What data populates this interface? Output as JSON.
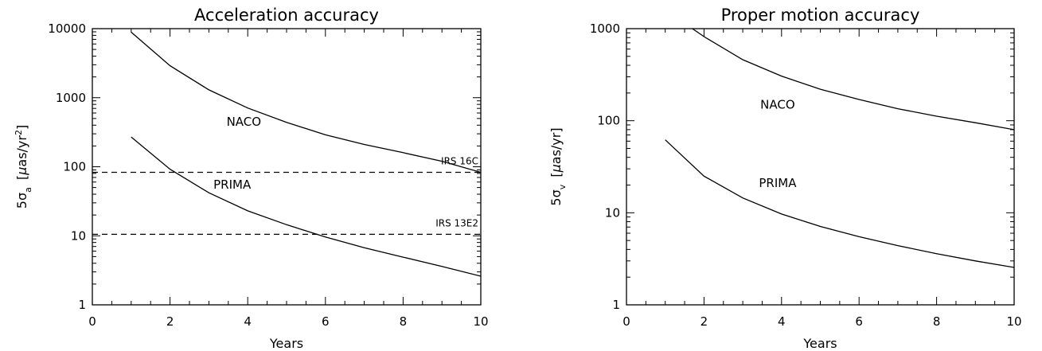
{
  "chart_data": [
    {
      "type": "line",
      "title": "Acceleration accuracy",
      "xlabel": "Years",
      "ylabel": {
        "prefix": "5σ",
        "sub": "a",
        "units_open": "[",
        "mu": "μ",
        "units_mid": "as/yr",
        "sup": "2",
        "units_close": "]"
      },
      "xlim": [
        0,
        10
      ],
      "ylim": [
        1,
        10000
      ],
      "yscale": "log",
      "xticks": [
        "0",
        "2",
        "4",
        "6",
        "8",
        "10"
      ],
      "yticks": [
        "1",
        "10",
        "100",
        "1000",
        "10000"
      ],
      "grid": false,
      "series": [
        {
          "name": "NACO",
          "x": [
            1,
            2,
            3,
            4,
            5,
            6,
            7,
            8,
            9,
            10
          ],
          "y": [
            8900,
            2900,
            1300,
            710,
            440,
            290,
            210,
            160,
            120,
            83
          ]
        },
        {
          "name": "PRIMA",
          "x": [
            1,
            2,
            3,
            4,
            5,
            6,
            7,
            8,
            9,
            10
          ],
          "y": [
            270,
            92,
            42,
            23,
            14.5,
            9.6,
            6.7,
            4.9,
            3.6,
            2.6
          ]
        }
      ],
      "reference_lines": [
        {
          "name": "IRS 16C",
          "y": 83,
          "style": "dashed"
        },
        {
          "name": "IRS 13E2",
          "y": 10.5,
          "style": "dashed"
        }
      ],
      "annotations": [
        {
          "text": "NACO",
          "x": 3.9,
          "y": 450
        },
        {
          "text": "PRIMA",
          "x": 3.6,
          "y": 55
        }
      ]
    },
    {
      "type": "line",
      "title": "Proper motion accuracy",
      "xlabel": "Years",
      "ylabel": {
        "prefix": "5σ",
        "sub": "v",
        "units_open": "[",
        "mu": "μ",
        "units_mid": "as/yr",
        "units_close": "]"
      },
      "xlim": [
        0,
        10
      ],
      "ylim": [
        1,
        1000
      ],
      "yscale": "log",
      "xticks": [
        "0",
        "2",
        "4",
        "6",
        "8",
        "10"
      ],
      "yticks": [
        "1",
        "10",
        "100",
        "1000"
      ],
      "grid": false,
      "series": [
        {
          "name": "NACO",
          "x": [
            1.7,
            2,
            3,
            4,
            5,
            6,
            7,
            8,
            9,
            10
          ],
          "y": [
            1000,
            820,
            460,
            305,
            220,
            170,
            135,
            112,
            95,
            80
          ]
        },
        {
          "name": "PRIMA",
          "x": [
            1,
            2,
            3,
            4,
            5,
            6,
            7,
            8,
            9,
            10
          ],
          "y": [
            62,
            25,
            14.5,
            9.7,
            7.1,
            5.5,
            4.4,
            3.6,
            3.0,
            2.55
          ]
        }
      ],
      "annotations": [
        {
          "text": "NACO",
          "x": 3.9,
          "y": 150
        },
        {
          "text": "PRIMA",
          "x": 3.9,
          "y": 21
        }
      ]
    }
  ]
}
